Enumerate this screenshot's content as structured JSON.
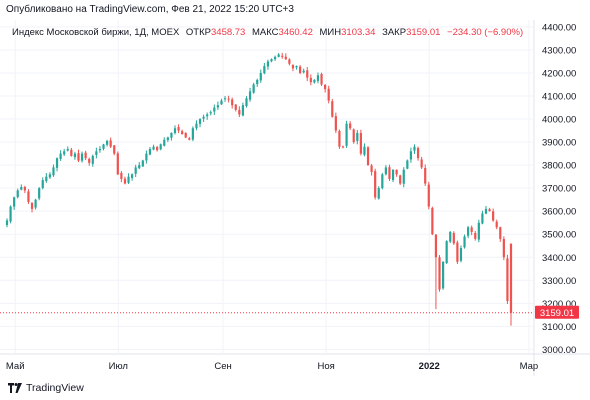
{
  "header": {
    "published": "Опубликовано на TradingView.com, Фев 21, 2022 15:20 UTC+3"
  },
  "legend": {
    "title": "Индекс Московской биржи, 1Д, MOEX",
    "open_label": "ОТКР",
    "open_value": "3458.73",
    "high_label": "МАКС",
    "high_value": "3460.42",
    "low_label": "МИН",
    "low_value": "3103.34",
    "close_label": "ЗАКР",
    "close_value": "3159.01",
    "change": "−234.30 (−6.90%)"
  },
  "price_tag": "3159.01",
  "footer": {
    "brand": "TradingView"
  },
  "colors": {
    "up": "#26a69a",
    "down": "#ef5350",
    "tag": "#f23645",
    "grid": "#f0f3fa"
  },
  "chart_data": {
    "type": "candlestick",
    "title": "Индекс Московской биржи, 1Д, MOEX",
    "ylim": [
      2980,
      4430
    ],
    "yticks": [
      "4400.00",
      "4300.00",
      "4200.00",
      "4100.00",
      "4000.00",
      "3900.00",
      "3800.00",
      "3700.00",
      "3600.00",
      "3500.00",
      "3400.00",
      "3300.00",
      "3200.00",
      "3100.00",
      "3000.00"
    ],
    "xticks": [
      {
        "label": "Май",
        "date": "2021-05-01",
        "bold": false
      },
      {
        "label": "Июл",
        "date": "2021-07-01",
        "bold": false
      },
      {
        "label": "Сен",
        "date": "2021-09-01",
        "bold": false
      },
      {
        "label": "Ноя",
        "date": "2021-11-01",
        "bold": false
      },
      {
        "label": "2022",
        "date": "2022-01-01",
        "bold": true
      },
      {
        "label": "Мар",
        "date": "2022-03-01",
        "bold": false
      }
    ],
    "last_price": 3159.01,
    "closes": [
      3560,
      3620,
      3660,
      3690,
      3705,
      3690,
      3640,
      3610,
      3650,
      3700,
      3735,
      3750,
      3760,
      3790,
      3830,
      3850,
      3860,
      3870,
      3840,
      3850,
      3820,
      3850,
      3830,
      3810,
      3840,
      3860,
      3870,
      3890,
      3905,
      3880,
      3850,
      3760,
      3740,
      3720,
      3750,
      3760,
      3790,
      3800,
      3820,
      3850,
      3870,
      3880,
      3865,
      3890,
      3910,
      3920,
      3940,
      3960,
      3950,
      3935,
      3920,
      3910,
      3960,
      3980,
      4000,
      4010,
      4020,
      4030,
      4050,
      4060,
      4080,
      4090,
      4085,
      4060,
      4040,
      4020,
      4060,
      4090,
      4120,
      4150,
      4170,
      4200,
      4230,
      4250,
      4260,
      4270,
      4280,
      4270,
      4260,
      4240,
      4220,
      4230,
      4200,
      4210,
      4180,
      4160,
      4170,
      4190,
      4150,
      4130,
      4080,
      4010,
      3950,
      3880,
      3880,
      3980,
      3960,
      3900,
      3940,
      3850,
      3880,
      3800,
      3770,
      3660,
      3700,
      3760,
      3790,
      3740,
      3780,
      3760,
      3720,
      3780,
      3820,
      3860,
      3880,
      3830,
      3790,
      3720,
      3620,
      3500,
      3400,
      3260,
      3380,
      3470,
      3510,
      3460,
      3380,
      3440,
      3490,
      3530,
      3510,
      3480,
      3550,
      3590,
      3610,
      3600,
      3560,
      3530,
      3480,
      3400,
      3210,
      3159.01
    ]
  }
}
